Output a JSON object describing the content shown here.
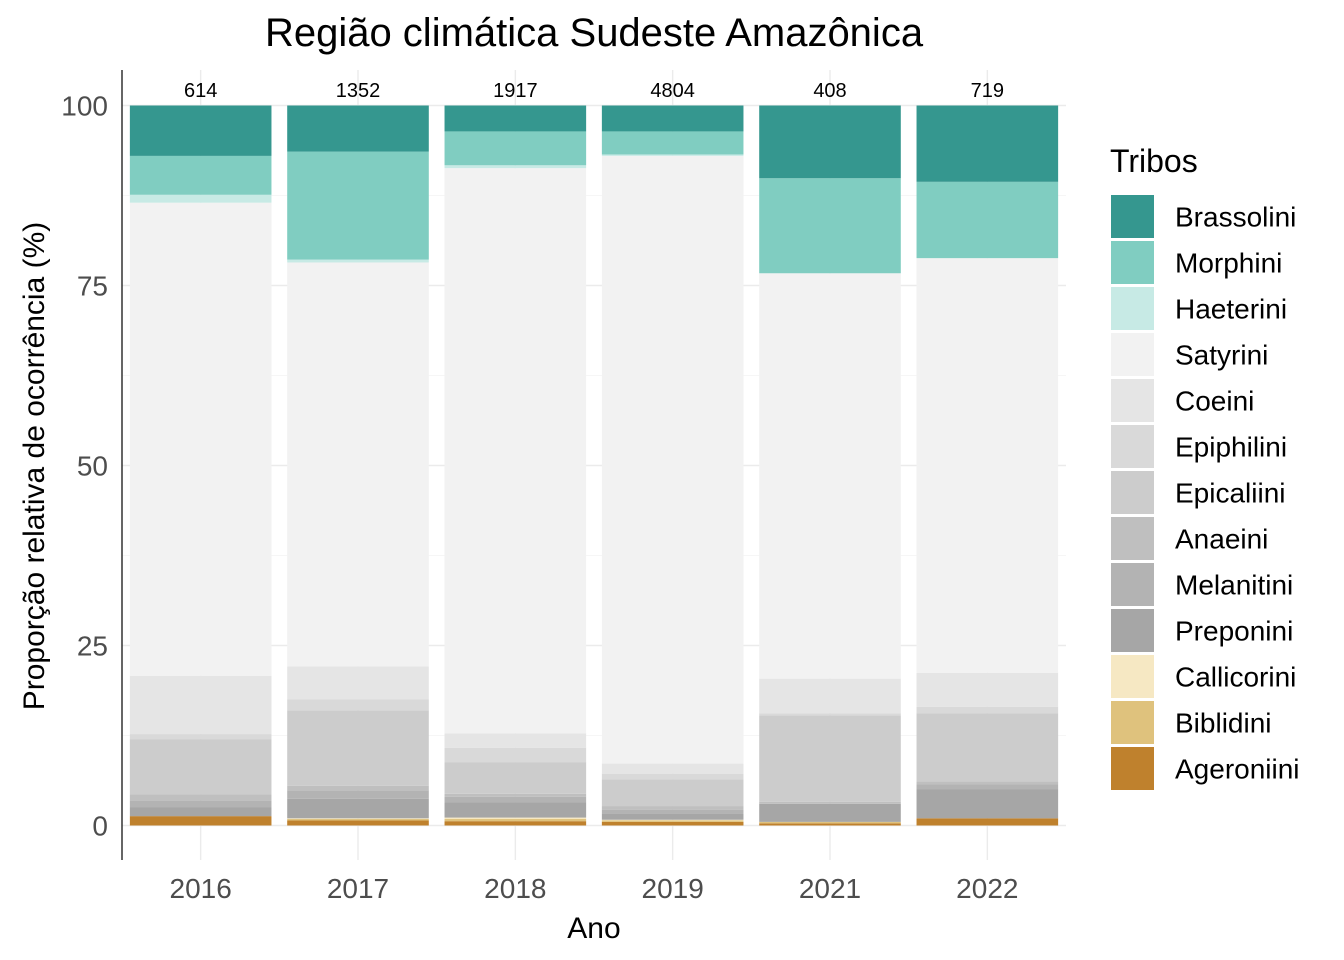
{
  "chart_data": {
    "type": "bar",
    "stacked": "percent",
    "title": "Região climática Sudeste Amazônica",
    "xlabel": "Ano",
    "ylabel": "Proporção relativa de ocorrência (%)",
    "ylim": [
      0,
      100
    ],
    "yticks": [
      0,
      25,
      50,
      75,
      100
    ],
    "grid": true,
    "legend": {
      "title": "Tribos",
      "position": "right"
    },
    "categories": [
      "2016",
      "2017",
      "2018",
      "2019",
      "2021",
      "2022"
    ],
    "totals": [
      614,
      1352,
      1917,
      4804,
      408,
      719
    ],
    "series": [
      {
        "name": "Ageroniini",
        "color": "#bf812d",
        "values": [
          1.3,
          0.7,
          0.6,
          0.5,
          0.3,
          1.0
        ]
      },
      {
        "name": "Biblidini",
        "color": "#dfc27d",
        "values": [
          0.0,
          0.2,
          0.3,
          0.2,
          0.2,
          0.0
        ]
      },
      {
        "name": "Callicorini",
        "color": "#f6e8c3",
        "values": [
          0.0,
          0.1,
          0.2,
          0.1,
          0.0,
          0.0
        ]
      },
      {
        "name": "Preponini",
        "color": "#a6a6a6",
        "values": [
          1.2,
          2.7,
          2.1,
          0.8,
          2.5,
          4.0
        ]
      },
      {
        "name": "Melanitini",
        "color": "#b3b3b3",
        "values": [
          1.0,
          1.2,
          0.8,
          0.6,
          0.0,
          0.7
        ]
      },
      {
        "name": "Anaeini",
        "color": "#bfbfbf",
        "values": [
          0.8,
          0.6,
          0.4,
          0.5,
          0.3,
          0.4
        ]
      },
      {
        "name": "Epicaliini",
        "color": "#cccccc",
        "values": [
          7.7,
          10.5,
          4.4,
          3.7,
          12.0,
          9.5
        ]
      },
      {
        "name": "Epiphilini",
        "color": "#d9d9d9",
        "values": [
          0.7,
          1.5,
          2.0,
          0.8,
          0.3,
          0.9
        ]
      },
      {
        "name": "Coeini",
        "color": "#e5e5e5",
        "values": [
          8.1,
          4.6,
          2.0,
          1.4,
          4.8,
          4.7
        ]
      },
      {
        "name": "Satyrini",
        "color": "#f2f2f2",
        "values": [
          65.7,
          56.1,
          78.5,
          84.4,
          56.3,
          57.6
        ]
      },
      {
        "name": "Haeterini",
        "color": "#c7eae5",
        "values": [
          1.1,
          0.4,
          0.4,
          0.2,
          0.0,
          0.0
        ]
      },
      {
        "name": "Morphini",
        "color": "#80cdc1",
        "values": [
          5.4,
          15.0,
          4.7,
          3.2,
          13.2,
          10.6
        ]
      },
      {
        "name": "Brassolini",
        "color": "#35978f",
        "values": [
          7.0,
          6.4,
          3.6,
          3.6,
          10.1,
          10.6
        ]
      }
    ]
  }
}
